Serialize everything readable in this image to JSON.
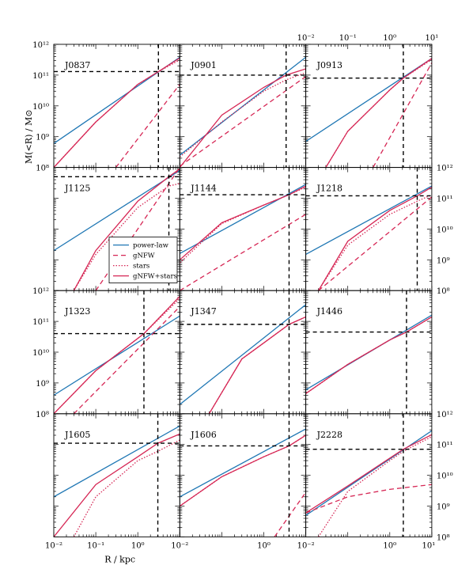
{
  "chart_data": {
    "type": "line",
    "xlabel": "R / kpc",
    "ylabel": "M(<R) / M⊙",
    "x_scale": "log",
    "y_scale": "log",
    "xlim": [
      0.01,
      10
    ],
    "ylim": [
      100000000.0,
      1000000000000.0
    ],
    "x_ticks": [
      "10⁻²",
      "10⁻¹",
      "10⁰",
      "10¹"
    ],
    "y_ticks": [
      "10⁸",
      "10⁹",
      "10¹⁰",
      "10¹¹",
      "10¹²"
    ],
    "legend": {
      "placement": "inside panel J1125",
      "entries": [
        "power-law",
        "gNFW",
        "stars",
        "gNFW+stars"
      ]
    },
    "colors": {
      "power-law": "#1f77b4",
      "gNFW": "#d62755",
      "stars": "#d62755",
      "gNFW+stars": "#d62755"
    },
    "series_styles": {
      "power-law": "solid",
      "gNFW": "dashed",
      "stars": "dotted",
      "gNFW+stars": "solid"
    },
    "panels": [
      {
        "name": "J0837",
        "r_ref": 3.1,
        "m_ref": 130000000000.0,
        "series": [
          {
            "name": "power-law",
            "x": [
              0.01,
              10
            ],
            "y": [
              600000000.0,
              380000000000.0
            ]
          },
          {
            "name": "gNFW",
            "x": [
              0.3,
              10
            ],
            "y": [
              100000000.0,
              50000000000.0
            ]
          },
          {
            "name": "stars",
            "x": [
              0.01,
              0.1,
              1,
              3.1,
              10
            ],
            "y": [
              100000000.0,
              3000000000.0,
              50000000000.0,
              130000000000.0,
              310000000000.0
            ]
          },
          {
            "name": "gNFW+stars",
            "x": [
              0.01,
              0.1,
              1,
              3.1,
              10
            ],
            "y": [
              100000000.0,
              3000000000.0,
              50000000000.0,
              130000000000.0,
              360000000000.0
            ]
          }
        ]
      },
      {
        "name": "J0901",
        "r_ref": 3.4,
        "m_ref": 100000000000.0,
        "series": [
          {
            "name": "power-law",
            "x": [
              0.01,
              10
            ],
            "y": [
              250000000.0,
              380000000000.0
            ]
          },
          {
            "name": "gNFW",
            "x": [
              0.01,
              10
            ],
            "y": [
              110000000.0,
              90000000000.0
            ]
          },
          {
            "name": "stars",
            "x": [
              0.01,
              0.1,
              1,
              3.4,
              10
            ],
            "y": [
              220000000.0,
              3000000000.0,
              30000000000.0,
              70000000000.0,
              120000000000.0
            ]
          },
          {
            "name": "gNFW+stars",
            "x": [
              0.01,
              0.1,
              1,
              3.4,
              10
            ],
            "y": [
              100000000.0,
              5000000000.0,
              40000000000.0,
              100000000000.0,
              160000000000.0
            ]
          }
        ]
      },
      {
        "name": "J0913",
        "r_ref": 2.1,
        "m_ref": 80000000000.0,
        "series": [
          {
            "name": "power-law",
            "x": [
              0.01,
              10
            ],
            "y": [
              700000000.0,
              350000000000.0
            ]
          },
          {
            "name": "gNFW",
            "x": [
              0.4,
              10
            ],
            "y": [
              100000000.0,
              250000000000.0
            ]
          },
          {
            "name": "stars",
            "x": [
              0.03,
              0.1,
              1,
              2.1,
              10
            ],
            "y": [
              100000000.0,
              1500000000.0,
              33000000000.0,
              80000000000.0,
              320000000000.0
            ]
          },
          {
            "name": "gNFW+stars",
            "x": [
              0.03,
              0.1,
              1,
              2.1,
              10
            ],
            "y": [
              100000000.0,
              1500000000.0,
              33000000000.0,
              80000000000.0,
              350000000000.0
            ]
          }
        ]
      },
      {
        "name": "J1125",
        "r_ref": 5.5,
        "m_ref": 500000000000.0,
        "series": [
          {
            "name": "power-law",
            "x": [
              0.01,
              10
            ],
            "y": [
              2000000000.0,
              800000000000.0
            ]
          },
          {
            "name": "gNFW",
            "x": [
              0.1,
              10
            ],
            "y": [
              100000000.0,
              1000000000000.0
            ]
          },
          {
            "name": "stars",
            "x": [
              0.03,
              0.1,
              1,
              5.5,
              10
            ],
            "y": [
              100000000.0,
              1500000000.0,
              50000000000.0,
              250000000000.0,
              300000000000.0
            ]
          },
          {
            "name": "gNFW+stars",
            "x": [
              0.03,
              0.1,
              1,
              5.5,
              10
            ],
            "y": [
              100000000.0,
              2000000000.0,
              80000000000.0,
              500000000000.0,
              900000000000.0
            ]
          }
        ]
      },
      {
        "name": "J1144",
        "r_ref": 4.0,
        "m_ref": 130000000000.0,
        "series": [
          {
            "name": "power-law",
            "x": [
              0.01,
              10
            ],
            "y": [
              1600000000.0,
              280000000000.0
            ]
          },
          {
            "name": "gNFW",
            "x": [
              0.01,
              10
            ],
            "y": [
              100000000.0,
              30000000000.0
            ]
          },
          {
            "name": "stars",
            "x": [
              0.01,
              0.1,
              1,
              4.0,
              10
            ],
            "y": [
              800000000.0,
              15000000000.0,
              60000000000.0,
              130000000000.0,
              230000000000.0
            ]
          },
          {
            "name": "gNFW+stars",
            "x": [
              0.01,
              0.1,
              1,
              4.0,
              10
            ],
            "y": [
              1000000000.0,
              16000000000.0,
              60000000000.0,
              130000000000.0,
              250000000000.0
            ]
          }
        ]
      },
      {
        "name": "J1218",
        "r_ref": 4.5,
        "m_ref": 120000000000.0,
        "series": [
          {
            "name": "power-law",
            "x": [
              0.01,
              10
            ],
            "y": [
              1500000000.0,
              250000000000.0
            ]
          },
          {
            "name": "gNFW",
            "x": [
              0.02,
              10
            ],
            "y": [
              100000000.0,
              110000000000.0
            ]
          },
          {
            "name": "stars",
            "x": [
              0.02,
              0.1,
              1,
              4.5,
              10
            ],
            "y": [
              100000000.0,
              3000000000.0,
              30000000000.0,
              80000000000.0,
              130000000000.0
            ]
          },
          {
            "name": "gNFW+stars",
            "x": [
              0.02,
              0.1,
              1,
              4.5,
              10
            ],
            "y": [
              100000000.0,
              4000000000.0,
              40000000000.0,
              120000000000.0,
              230000000000.0
            ]
          }
        ]
      },
      {
        "name": "J1323",
        "r_ref": 1.4,
        "m_ref": 40000000000.0,
        "series": [
          {
            "name": "power-law",
            "x": [
              0.01,
              10
            ],
            "y": [
              400000000.0,
              150000000000.0
            ]
          },
          {
            "name": "gNFW",
            "x": [
              0.03,
              10
            ],
            "y": [
              100000000.0,
              300000000000.0
            ]
          },
          {
            "name": "stars",
            "x": [
              0.01,
              0.1,
              1.4,
              10
            ],
            "y": [
              100000000.0,
              2500000000.0,
              40000000000.0,
              550000000000.0
            ]
          },
          {
            "name": "gNFW+stars",
            "x": [
              0.01,
              0.1,
              1.4,
              10
            ],
            "y": [
              100000000.0,
              2500000000.0,
              40000000000.0,
              650000000000.0
            ]
          }
        ]
      },
      {
        "name": "J1347",
        "r_ref": 4.0,
        "m_ref": 80000000000.0,
        "series": [
          {
            "name": "power-law",
            "x": [
              0.01,
              10
            ],
            "y": [
              200000000.0,
              350000000000.0
            ]
          },
          {
            "name": "stars",
            "x": [
              0.05,
              0.3,
              1,
              4.0,
              10
            ],
            "y": [
              100000000.0,
              6000000000.0,
              20000000000.0,
              80000000000.0,
              140000000000.0
            ]
          },
          {
            "name": "gNFW+stars",
            "x": [
              0.05,
              0.3,
              1,
              4.0,
              10
            ],
            "y": [
              100000000.0,
              6000000000.0,
              20000000000.0,
              80000000000.0,
              140000000000.0
            ]
          }
        ]
      },
      {
        "name": "J1446",
        "r_ref": 2.5,
        "m_ref": 45000000000.0,
        "series": [
          {
            "name": "power-law",
            "x": [
              0.01,
              10
            ],
            "y": [
              600000000.0,
              160000000000.0
            ]
          },
          {
            "name": "stars",
            "x": [
              0.01,
              0.1,
              1,
              2.5,
              10
            ],
            "y": [
              450000000.0,
              4000000000.0,
              25000000000.0,
              45000000000.0,
              140000000000.0
            ]
          },
          {
            "name": "gNFW+stars",
            "x": [
              0.01,
              0.1,
              1,
              2.5,
              10
            ],
            "y": [
              450000000.0,
              4000000000.0,
              25000000000.0,
              45000000000.0,
              140000000000.0
            ]
          }
        ]
      },
      {
        "name": "J1605",
        "r_ref": 3.0,
        "m_ref": 110000000000.0,
        "series": [
          {
            "name": "power-law",
            "x": [
              0.01,
              10
            ],
            "y": [
              2000000000.0,
              400000000000.0
            ]
          },
          {
            "name": "stars",
            "x": [
              0.03,
              0.1,
              1,
              3.0,
              10
            ],
            "y": [
              100000000.0,
              2000000000.0,
              30000000000.0,
              60000000000.0,
              140000000000.0
            ]
          },
          {
            "name": "gNFW+stars",
            "x": [
              0.01,
              0.1,
              1,
              3.0,
              10
            ],
            "y": [
              100000000.0,
              5000000000.0,
              40000000000.0,
              110000000000.0,
              220000000000.0
            ]
          }
        ]
      },
      {
        "name": "J1606",
        "r_ref": 4.0,
        "m_ref": 90000000000.0,
        "series": [
          {
            "name": "power-law",
            "x": [
              0.01,
              10
            ],
            "y": [
              2000000000.0,
              320000000000.0
            ]
          },
          {
            "name": "gNFW",
            "x": [
              1.8,
              10
            ],
            "y": [
              100000000.0,
              2800000000.0
            ]
          },
          {
            "name": "stars",
            "x": [
              0.01,
              0.1,
              1,
              4.0,
              10
            ],
            "y": [
              1000000000.0,
              9000000000.0,
              40000000000.0,
              90000000000.0,
              200000000000.0
            ]
          },
          {
            "name": "gNFW+stars",
            "x": [
              0.01,
              0.1,
              1,
              4.0,
              10
            ],
            "y": [
              1000000000.0,
              9000000000.0,
              40000000000.0,
              90000000000.0,
              200000000000.0
            ]
          }
        ]
      },
      {
        "name": "J2228",
        "r_ref": 2.1,
        "m_ref": 70000000000.0,
        "series": [
          {
            "name": "power-law",
            "x": [
              0.01,
              10
            ],
            "y": [
              500000000.0,
              280000000000.0
            ]
          },
          {
            "name": "gNFW",
            "x": [
              0.01,
              0.1,
              1,
              10
            ],
            "y": [
              600000000.0,
              2000000000.0,
              3500000000.0,
              5000000000.0
            ]
          },
          {
            "name": "stars",
            "x": [
              0.02,
              0.1,
              1,
              2.1,
              10
            ],
            "y": [
              100000000.0,
              3000000000.0,
              30000000000.0,
              60000000000.0,
              180000000000.0
            ]
          },
          {
            "name": "gNFW+stars",
            "x": [
              0.01,
              0.1,
              1,
              2.1,
              10
            ],
            "y": [
              600000000.0,
              4500000000.0,
              36000000000.0,
              70000000000.0,
              210000000000.0
            ]
          }
        ]
      }
    ]
  }
}
